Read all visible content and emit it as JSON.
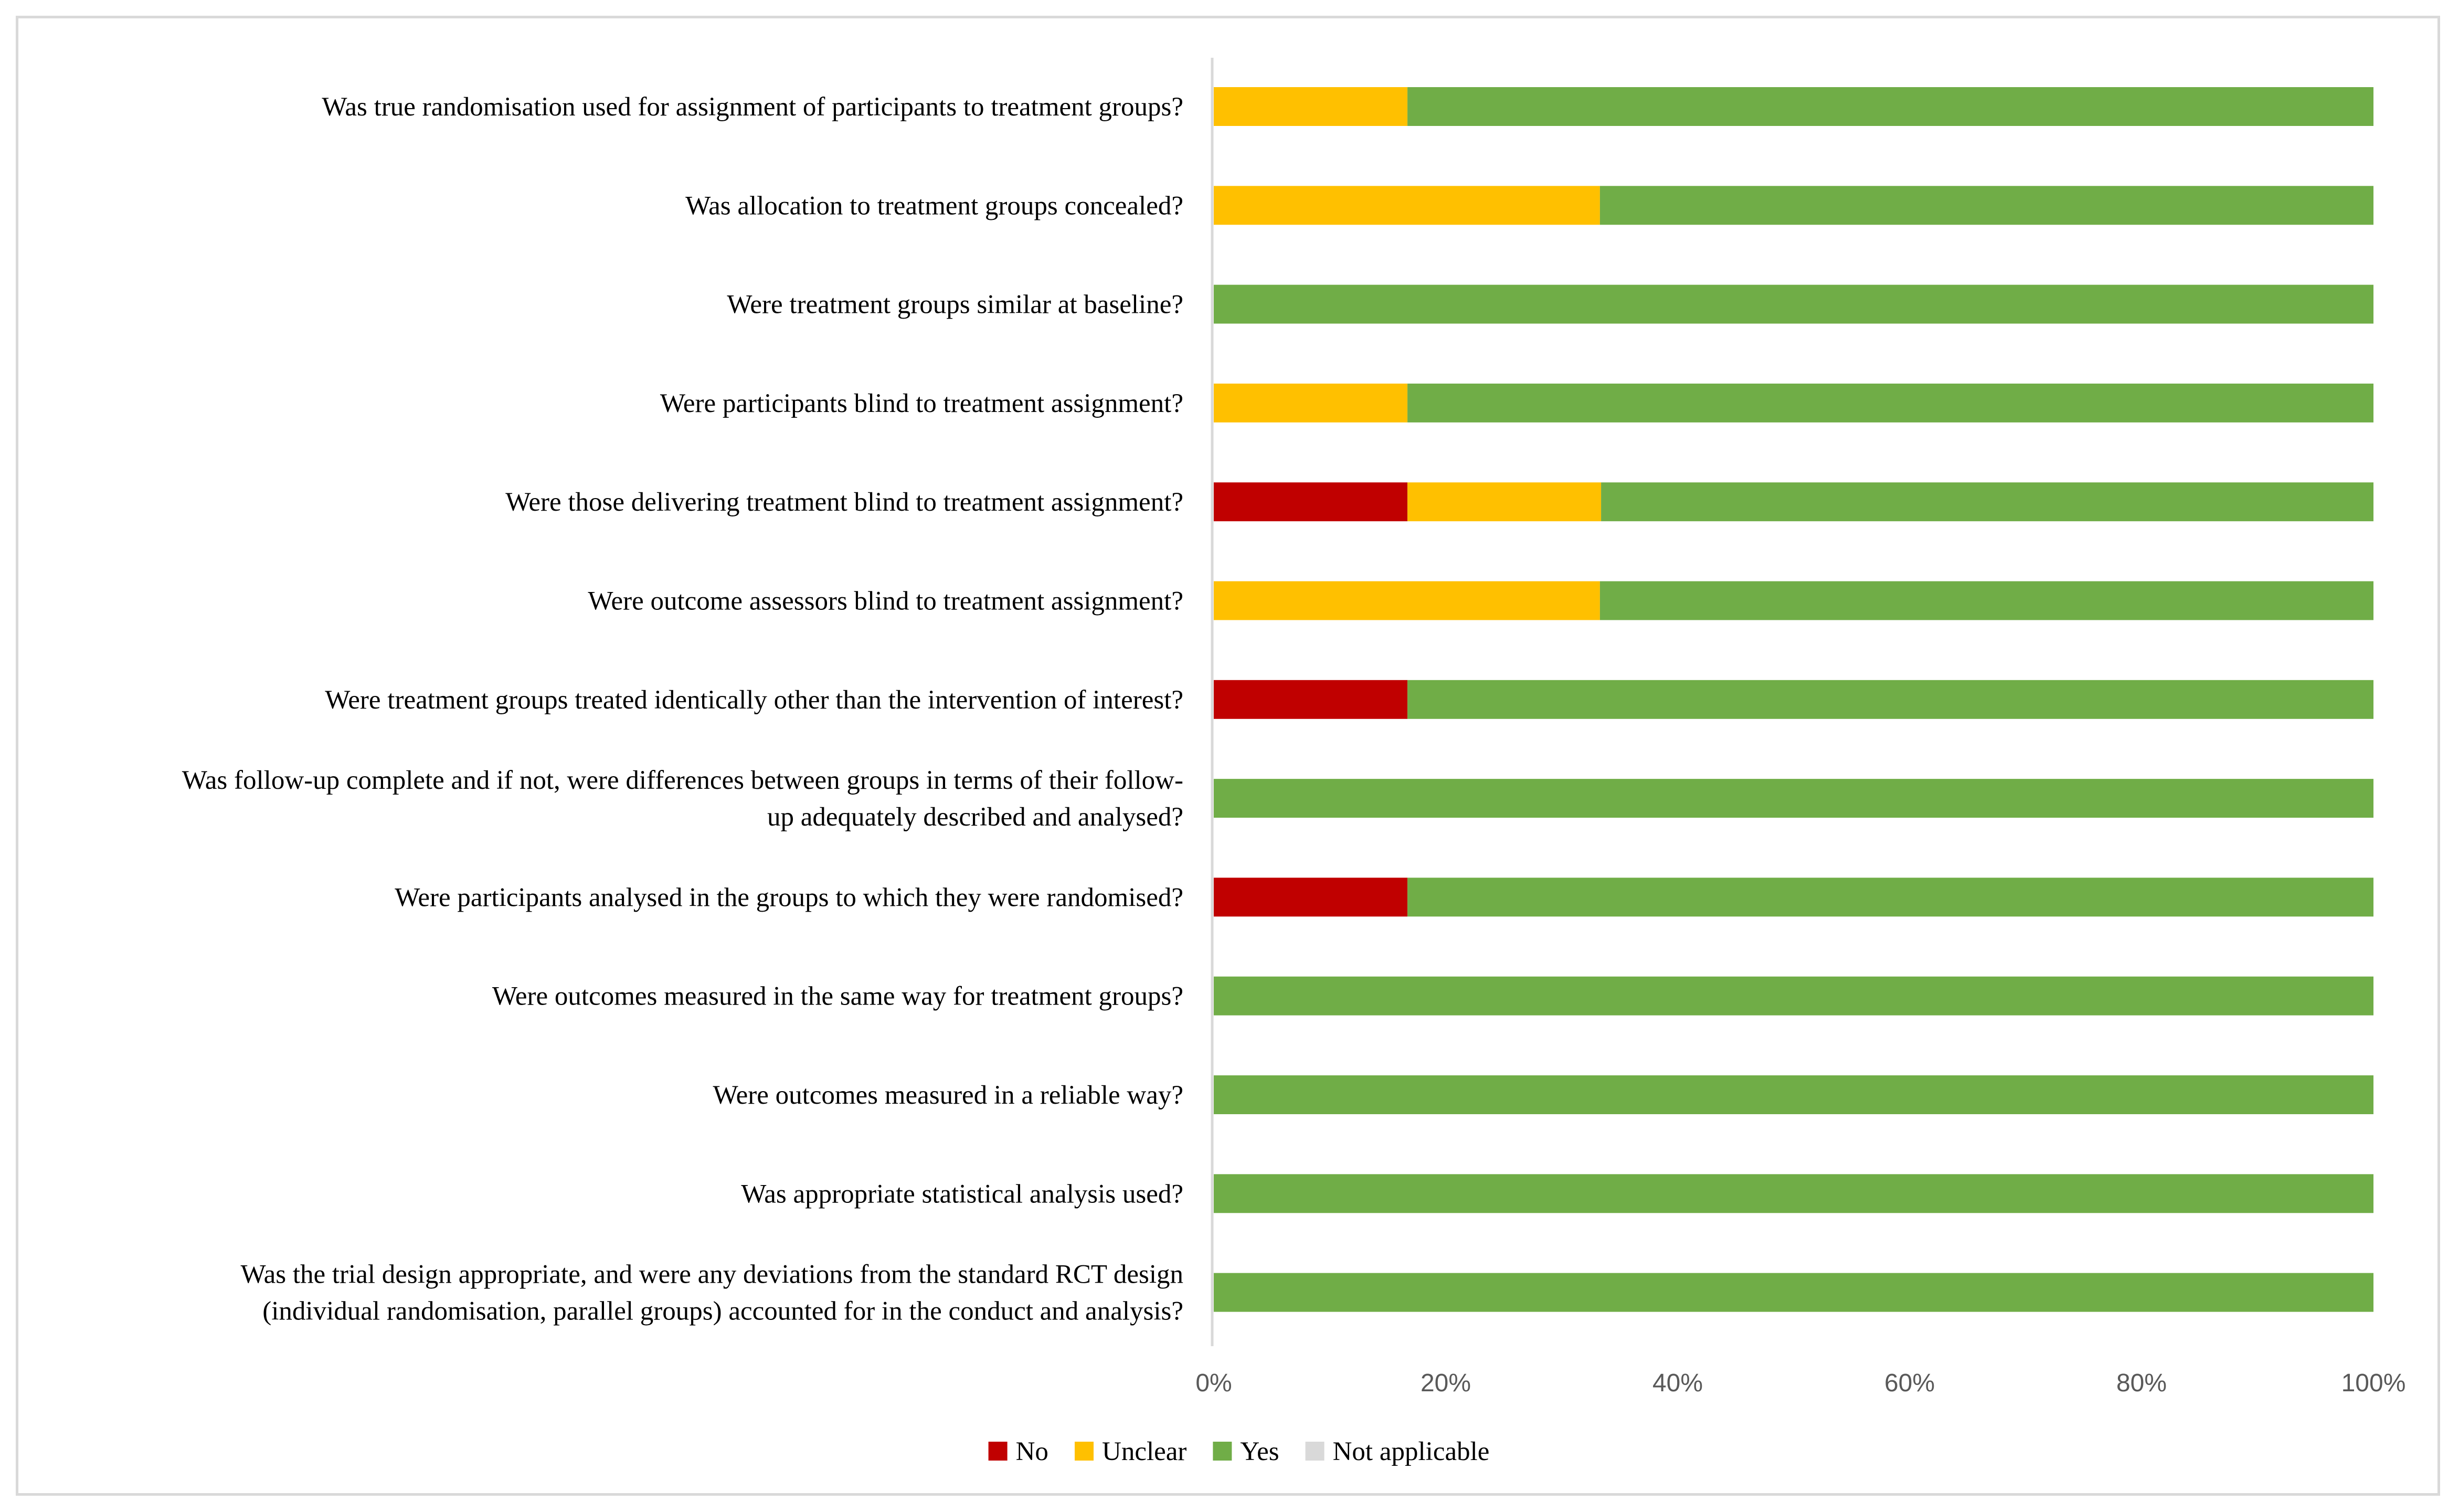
{
  "chart_data": {
    "type": "bar",
    "orientation": "horizontal",
    "stacked": true,
    "percent": true,
    "title": "",
    "xlabel": "",
    "ylabel": "",
    "xlim": [
      0,
      100
    ],
    "x_ticks": [
      "0%",
      "20%",
      "40%",
      "60%",
      "80%",
      "100%"
    ],
    "grid": false,
    "legend_position": "bottom",
    "categories": [
      [
        "Was true randomisation used for assignment of participants to treatment groups?"
      ],
      [
        "Was allocation to treatment groups concealed?"
      ],
      [
        "Were treatment groups similar at baseline?"
      ],
      [
        "Were participants blind to treatment assignment?"
      ],
      [
        "Were those delivering treatment blind to treatment assignment?"
      ],
      [
        "Were outcome assessors blind to treatment assignment?"
      ],
      [
        "Were treatment groups treated identically other than the intervention of interest?"
      ],
      [
        "Was follow-up complete and if not, were differences between groups in terms of their follow-",
        "up adequately described and analysed?"
      ],
      [
        "Were participants analysed in the groups to which they were randomised?"
      ],
      [
        "Were outcomes measured in the same way for treatment groups?"
      ],
      [
        "Were outcomes measured in a reliable way?"
      ],
      [
        "Was appropriate statistical analysis used?"
      ],
      [
        "Was the trial design appropriate, and were any deviations from the standard RCT design",
        "(individual randomisation, parallel groups) accounted for in the conduct and analysis?"
      ]
    ],
    "series": [
      {
        "name": "No",
        "color": "#c00000",
        "values": [
          0,
          0,
          0,
          0,
          16.7,
          0,
          16.7,
          0,
          16.7,
          0,
          0,
          0,
          0
        ]
      },
      {
        "name": "Unclear",
        "color": "#ffc000",
        "values": [
          16.7,
          33.3,
          0,
          16.7,
          16.7,
          33.3,
          0,
          0,
          0,
          0,
          0,
          0,
          0
        ]
      },
      {
        "name": "Yes",
        "color": "#70ad47",
        "values": [
          83.3,
          66.7,
          100,
          83.3,
          66.6,
          66.7,
          83.3,
          100,
          83.3,
          100,
          100,
          100,
          100
        ]
      },
      {
        "name": "Not applicable",
        "color": "#d9d9d9",
        "values": [
          0,
          0,
          0,
          0,
          0,
          0,
          0,
          0,
          0,
          0,
          0,
          0,
          0
        ]
      }
    ]
  }
}
